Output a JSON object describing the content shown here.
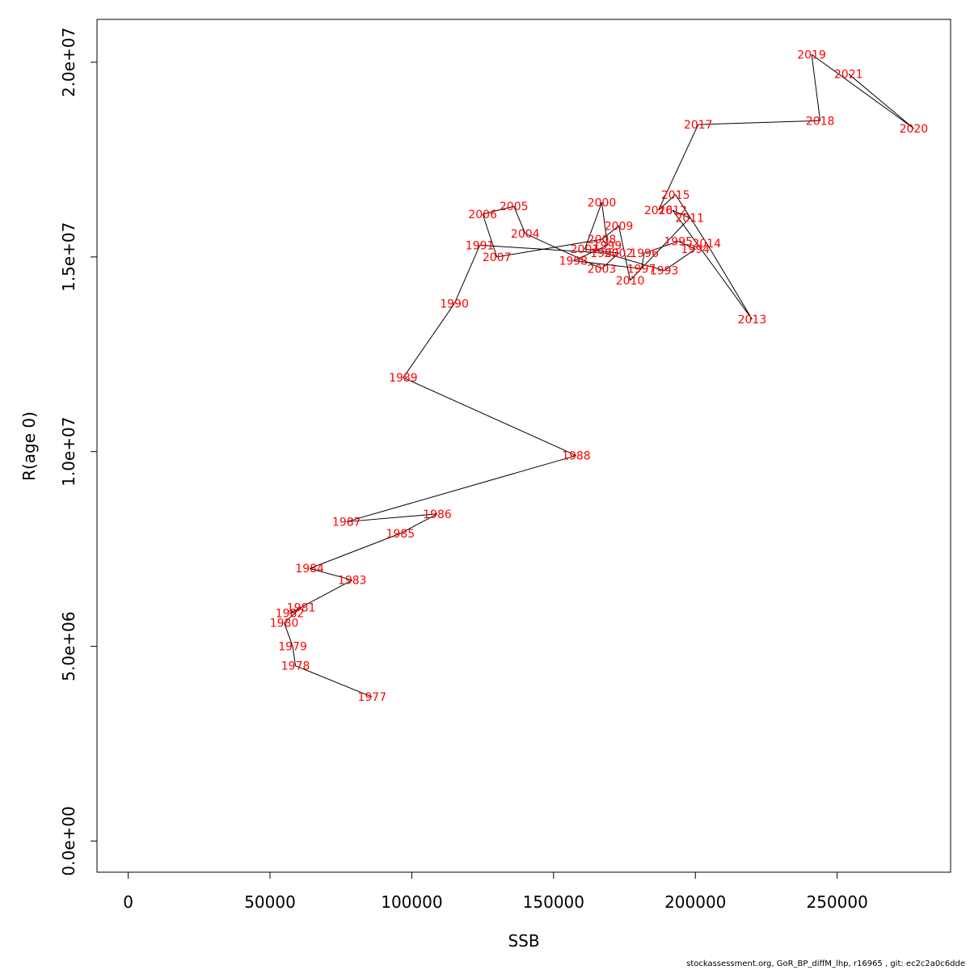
{
  "chart_data": {
    "type": "line",
    "xlabel": "SSB",
    "ylabel": "R(age 0)",
    "xlim": [
      -11000,
      290000
    ],
    "ylim": [
      -800000,
      21100000
    ],
    "x_ticks": [
      0,
      50000,
      100000,
      150000,
      200000,
      250000
    ],
    "x_tick_labels": [
      "0",
      "50000",
      "100000",
      "150000",
      "200000",
      "250000"
    ],
    "y_ticks": [
      0,
      5000000,
      10000000,
      15000000,
      20000000
    ],
    "y_tick_labels": [
      "0.0e+00",
      "5.0e+06",
      "1.0e+07",
      "1.5e+07",
      "2.0e+07"
    ],
    "grid": false,
    "line_color": "#000000",
    "label_color": "#ff0000",
    "points": [
      {
        "label": "1977",
        "x": 86000,
        "y": 3700000
      },
      {
        "label": "1978",
        "x": 59000,
        "y": 4500000
      },
      {
        "label": "1979",
        "x": 58000,
        "y": 5000000
      },
      {
        "label": "1980",
        "x": 55000,
        "y": 5600000
      },
      {
        "label": "1981",
        "x": 61000,
        "y": 6000000
      },
      {
        "label": "1982",
        "x": 57000,
        "y": 5850000
      },
      {
        "label": "1983",
        "x": 79000,
        "y": 6700000
      },
      {
        "label": "1984",
        "x": 64000,
        "y": 7000000
      },
      {
        "label": "1985",
        "x": 96000,
        "y": 7900000
      },
      {
        "label": "1986",
        "x": 109000,
        "y": 8400000
      },
      {
        "label": "1987",
        "x": 77000,
        "y": 8200000
      },
      {
        "label": "1988",
        "x": 158000,
        "y": 9900000
      },
      {
        "label": "1989",
        "x": 97000,
        "y": 11900000
      },
      {
        "label": "1990",
        "x": 115000,
        "y": 13800000
      },
      {
        "label": "1991",
        "x": 124000,
        "y": 15300000
      },
      {
        "label": "1992",
        "x": 168000,
        "y": 15100000
      },
      {
        "label": "1993",
        "x": 189000,
        "y": 14650000
      },
      {
        "label": "1994",
        "x": 200000,
        "y": 15200000
      },
      {
        "label": "1995",
        "x": 194000,
        "y": 15400000
      },
      {
        "label": "1996",
        "x": 182000,
        "y": 15100000
      },
      {
        "label": "1997",
        "x": 181000,
        "y": 14700000
      },
      {
        "label": "1998",
        "x": 157000,
        "y": 14900000
      },
      {
        "label": "1999",
        "x": 169000,
        "y": 15300000
      },
      {
        "label": "2000",
        "x": 167000,
        "y": 16400000
      },
      {
        "label": "2001",
        "x": 161000,
        "y": 15200000
      },
      {
        "label": "2002",
        "x": 173000,
        "y": 15100000
      },
      {
        "label": "2003",
        "x": 167000,
        "y": 14700000
      },
      {
        "label": "2004",
        "x": 140000,
        "y": 15600000
      },
      {
        "label": "2005",
        "x": 136000,
        "y": 16300000
      },
      {
        "label": "2006",
        "x": 125000,
        "y": 16100000
      },
      {
        "label": "2007",
        "x": 130000,
        "y": 15000000
      },
      {
        "label": "2008",
        "x": 167000,
        "y": 15450000
      },
      {
        "label": "2009",
        "x": 173000,
        "y": 15800000
      },
      {
        "label": "2010",
        "x": 177000,
        "y": 14400000
      },
      {
        "label": "2011",
        "x": 198000,
        "y": 16000000
      },
      {
        "label": "2012",
        "x": 192000,
        "y": 16200000
      },
      {
        "label": "2013",
        "x": 220000,
        "y": 13400000
      },
      {
        "label": "2014",
        "x": 204000,
        "y": 15350000
      },
      {
        "label": "2015",
        "x": 193000,
        "y": 16600000
      },
      {
        "label": "2016",
        "x": 187000,
        "y": 16200000
      },
      {
        "label": "2017",
        "x": 201000,
        "y": 18400000
      },
      {
        "label": "2018",
        "x": 244000,
        "y": 18500000
      },
      {
        "label": "2019",
        "x": 241000,
        "y": 20200000
      },
      {
        "label": "2020",
        "x": 277000,
        "y": 18300000
      },
      {
        "label": "2021",
        "x": 254000,
        "y": 19700000
      }
    ]
  },
  "footer": "stockassessment.org, GoR_BP_diffM_lhp, r16965 , git: ec2c2a0c6dde"
}
